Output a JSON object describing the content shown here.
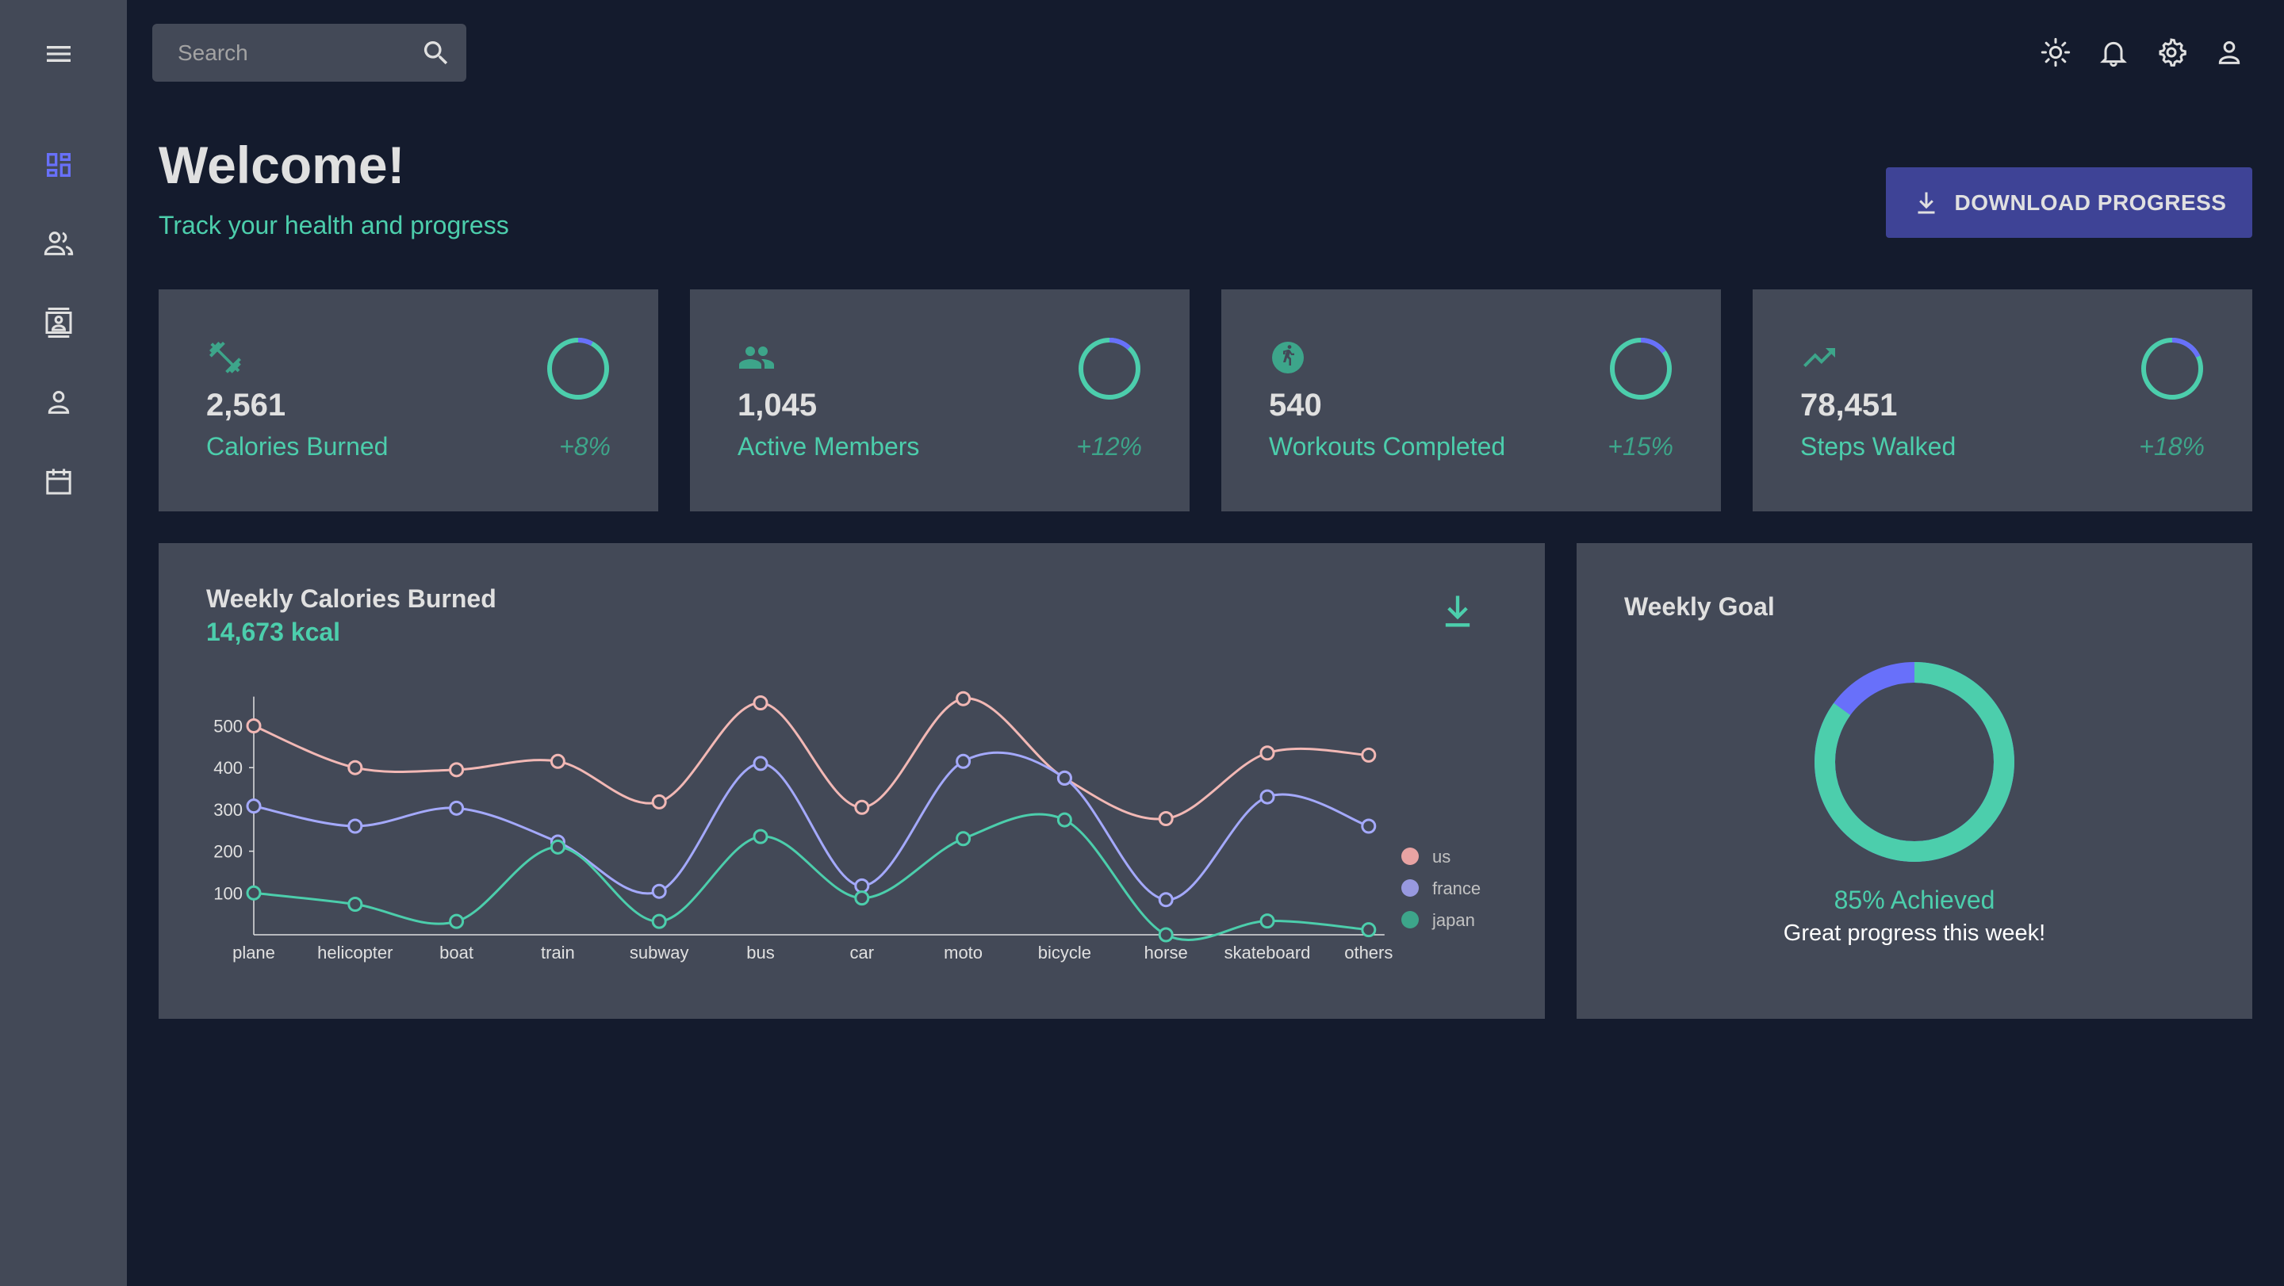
{
  "search": {
    "placeholder": "Search"
  },
  "header": {
    "title": "Welcome!",
    "subtitle": "Track your health and progress",
    "download_label": "DOWNLOAD PROGRESS"
  },
  "sidebar": {
    "items": [
      {
        "icon": "menu-icon"
      },
      {
        "icon": "dashboard-icon",
        "active": true
      },
      {
        "icon": "team-icon"
      },
      {
        "icon": "contacts-icon"
      },
      {
        "icon": "person-icon"
      },
      {
        "icon": "calendar-icon"
      }
    ]
  },
  "topbar": {
    "icons": [
      "light-mode-icon",
      "notifications-icon",
      "settings-icon",
      "profile-icon"
    ]
  },
  "stats": [
    {
      "icon": "dumbbell-icon",
      "value": "2,561",
      "label": "Calories Burned",
      "increase": "+8%",
      "progress": 0.08
    },
    {
      "icon": "group-icon",
      "value": "1,045",
      "label": "Active Members",
      "increase": "+12%",
      "progress": 0.12
    },
    {
      "icon": "running-icon",
      "value": "540",
      "label": "Workouts Completed",
      "increase": "+15%",
      "progress": 0.15
    },
    {
      "icon": "trending-up-icon",
      "value": "78,451",
      "label": "Steps Walked",
      "increase": "+18%",
      "progress": 0.18
    }
  ],
  "line_chart": {
    "title": "Weekly Calories Burned",
    "total": "14,673 kcal"
  },
  "goal": {
    "title": "Weekly Goal",
    "achieved_text": "85% Achieved",
    "message": "Great progress this week!",
    "progress": 0.85
  },
  "colors": {
    "accent": "#4cceac",
    "secondary": "#6870fa",
    "button": "#3e4396",
    "card": "#434957",
    "background": "#141b2d"
  },
  "chart_data": {
    "type": "line",
    "x": [
      "plane",
      "helicopter",
      "boat",
      "train",
      "subway",
      "bus",
      "car",
      "moto",
      "bicycle",
      "horse",
      "skateboard",
      "others"
    ],
    "ylim": [
      0,
      570
    ],
    "yticks": [
      100,
      200,
      300,
      400,
      500
    ],
    "legend_position": "right",
    "grid": false,
    "series": [
      {
        "name": "us",
        "color": "#f2b8b5",
        "legend_color": "#e8a3a3",
        "values": [
          500,
          400,
          395,
          415,
          318,
          555,
          305,
          565,
          375,
          278,
          435,
          430
        ]
      },
      {
        "name": "france",
        "color": "#a4a9fc",
        "legend_color": "#9899e0",
        "values": [
          308,
          260,
          303,
          222,
          104,
          410,
          117,
          415,
          375,
          84,
          330,
          260
        ]
      },
      {
        "name": "japan",
        "color": "#4cceac",
        "legend_color": "#3da58a",
        "values": [
          100,
          73,
          32,
          210,
          32,
          235,
          88,
          230,
          275,
          0,
          33,
          12
        ]
      }
    ]
  }
}
